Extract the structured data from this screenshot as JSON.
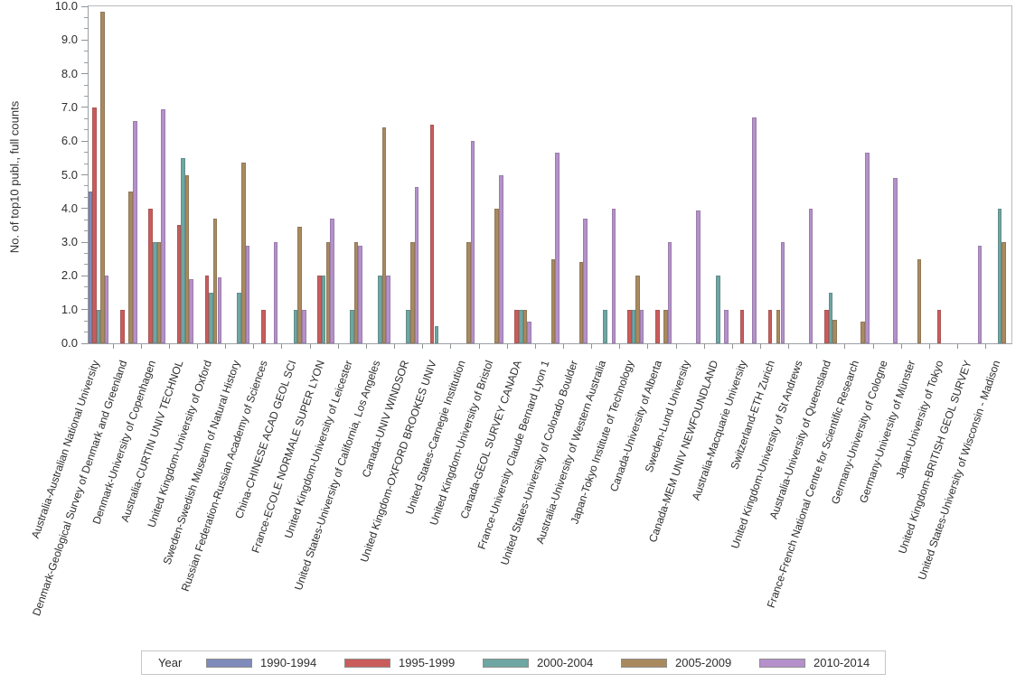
{
  "chart_data": {
    "type": "bar",
    "title": "",
    "xlabel": "",
    "ylabel": "No. of top10 publ., full counts",
    "ylim": [
      0,
      10
    ],
    "ytick_interval": 1.0,
    "ytick_label_format": "one-decimal",
    "minor_yticks_per_interval": 2,
    "grid": false,
    "legend": {
      "title": "Year",
      "position": "bottom"
    },
    "categories": [
      "Australia-Australian National University",
      "Denmark-Geological Survey of Denmark and Greenland",
      "Denmark-University of Copenhagen",
      "Australia-CURTIN UNIV TECHNOL",
      "United Kingdom-University of Oxford",
      "Sweden-Swedish Museum of Natural History",
      "Russian Federation-Russian Academy of Sciences",
      "China-CHINESE ACAD GEOL SCI",
      "France-ECOLE NORMALE SUPER LYON",
      "United Kingdom-University of Leicester",
      "United States-University of California, Los Angeles",
      "Canada-UNIV WINDSOR",
      "United Kingdom-OXFORD BROOKES UNIV",
      "United States-Carnegie Institution",
      "United Kingdom-University of Bristol",
      "Canada-GEOL SURVEY CANADA",
      "France-University Claude Bernard Lyon 1",
      "United States-University of Colorado Boulder",
      "Australia-University of Western Australia",
      "Japan-Tokyo Institute of Technology",
      "Canada-University of Alberta",
      "Sweden-Lund University",
      "Canada-MEM UNIV NEWFOUNDLAND",
      "Australia-Macquarie University",
      "Switzerland-ETH Zurich",
      "United Kingdom-University of St Andrews",
      "Australia-University of Queensland",
      "France-French National Centre for Scientific Research",
      "Germany-University of Cologne",
      "Germany-University of Münster",
      "Japan-University of Tokyo",
      "United Kingdom-BRITISH GEOL SURVEY",
      "United States-University of Wisconsin - Madison"
    ],
    "series": [
      {
        "name": "1990-1994",
        "color": "#7E8BBB",
        "values": [
          4.5,
          null,
          null,
          null,
          null,
          null,
          null,
          null,
          null,
          null,
          null,
          null,
          null,
          null,
          null,
          null,
          null,
          null,
          null,
          null,
          null,
          null,
          null,
          null,
          null,
          null,
          null,
          null,
          null,
          null,
          null,
          null,
          null
        ]
      },
      {
        "name": "1995-1999",
        "color": "#C95D5C",
        "values": [
          7,
          1,
          4,
          3.5,
          2,
          null,
          1,
          null,
          2,
          null,
          null,
          null,
          6.5,
          null,
          null,
          1,
          null,
          null,
          null,
          1,
          1,
          null,
          null,
          1,
          1,
          null,
          1,
          null,
          null,
          null,
          1,
          null,
          null
        ]
      },
      {
        "name": "2000-2004",
        "color": "#6DA6A2",
        "values": [
          1,
          null,
          3,
          5.5,
          1.5,
          1.5,
          null,
          1,
          2,
          1,
          2,
          1,
          0.5,
          null,
          null,
          1,
          null,
          null,
          1,
          1,
          null,
          null,
          2,
          null,
          null,
          null,
          1.5,
          null,
          null,
          null,
          null,
          null,
          4
        ]
      },
      {
        "name": "2005-2009",
        "color": "#A98A5F",
        "values": [
          9.85,
          4.5,
          3,
          5,
          3.7,
          5.35,
          null,
          3.45,
          3,
          3,
          6.4,
          3,
          null,
          3,
          4,
          1,
          2.5,
          2.4,
          null,
          2,
          1,
          null,
          null,
          null,
          1,
          null,
          0.7,
          0.65,
          null,
          2.5,
          null,
          null,
          3
        ]
      },
      {
        "name": "2010-2014",
        "color": "#B590CB",
        "values": [
          2,
          6.6,
          6.95,
          1.9,
          1.95,
          2.9,
          3,
          1,
          3.7,
          2.9,
          2,
          4.65,
          null,
          6,
          5,
          0.65,
          5.65,
          3.7,
          4,
          1,
          3,
          3.95,
          1,
          6.7,
          3,
          4,
          null,
          5.65,
          4.9,
          null,
          null,
          2.9,
          null
        ]
      }
    ]
  }
}
